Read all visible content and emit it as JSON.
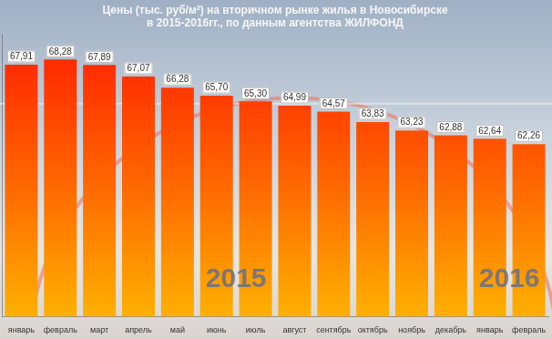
{
  "chart_data": {
    "type": "bar",
    "title": [
      "Цены (тыс. руб/м²) на вторичном рынке жилья в Новосибирске",
      "в 2015-2016гг., по данным агентства ЖИЛФОНД"
    ],
    "categories": [
      "январь",
      "февраль",
      "март",
      "апрель",
      "май",
      "июнь",
      "июль",
      "август",
      "сентябрь",
      "октябрь",
      "ноябрь",
      "декабрь",
      "январь",
      "февраль"
    ],
    "values": [
      67.91,
      68.28,
      67.89,
      67.07,
      66.28,
      65.7,
      65.3,
      64.99,
      64.57,
      63.83,
      63.23,
      62.88,
      62.64,
      62.26
    ],
    "value_labels": [
      "67,91",
      "68,28",
      "67,89",
      "67,07",
      "66,28",
      "65,70",
      "65,30",
      "64,99",
      "64,57",
      "63,83",
      "63,23",
      "62,88",
      "62,64",
      "62,26"
    ],
    "color": "#ff1e00",
    "ylim": [
      50,
      70
    ],
    "yticks": [
      50,
      70
    ],
    "grid": false,
    "data_labels": true,
    "tick_labels": "x",
    "annotations": [
      "2015",
      "2016"
    ]
  }
}
